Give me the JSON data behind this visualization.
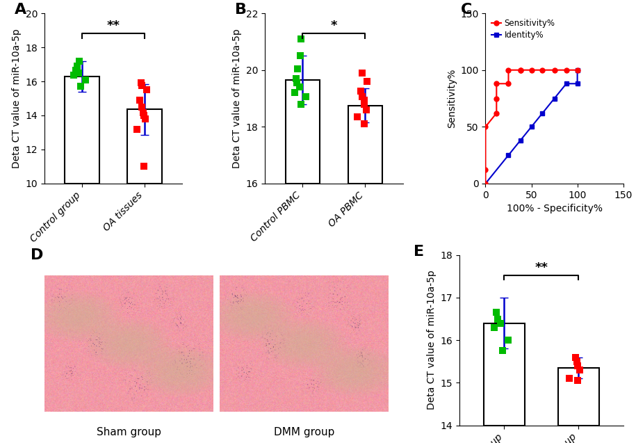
{
  "panel_A": {
    "title": "A",
    "ylabel": "Deta CT value of miR-10a-5p",
    "categories": [
      "Control group",
      "OA tissues"
    ],
    "bar_means": [
      16.3,
      14.35
    ],
    "bar_sd": [
      0.9,
      1.5
    ],
    "ylim": [
      10,
      20
    ],
    "yticks": [
      10,
      12,
      14,
      16,
      18,
      20
    ],
    "sig_text": "**",
    "dots_group1": [
      15.7,
      16.1,
      16.35,
      16.5,
      16.6,
      16.65,
      16.9,
      17.2
    ],
    "dots_group2": [
      11.0,
      13.2,
      13.8,
      14.0,
      14.15,
      14.5,
      14.9,
      15.5,
      15.75,
      15.9
    ],
    "dots_color1": "#00bb00",
    "dots_color2": "#ff0000"
  },
  "panel_B": {
    "title": "B",
    "ylabel": "Deta CT value of miR-10a-5p",
    "categories": [
      "Control PBMC",
      "OA PBMC"
    ],
    "bar_means": [
      19.65,
      18.75
    ],
    "bar_sd": [
      0.85,
      0.6
    ],
    "ylim": [
      16,
      22
    ],
    "yticks": [
      16,
      18,
      20,
      22
    ],
    "sig_text": "*",
    "dots_group1": [
      18.8,
      19.05,
      19.2,
      19.4,
      19.55,
      19.7,
      20.05,
      20.5,
      21.1
    ],
    "dots_group2": [
      18.1,
      18.35,
      18.6,
      18.8,
      18.95,
      19.05,
      19.25,
      19.6,
      19.9
    ],
    "dots_color1": "#00bb00",
    "dots_color2": "#ff0000"
  },
  "panel_C": {
    "title": "C",
    "xlabel": "100% - Specificity%",
    "ylabel": "Sensitivity%",
    "xlim": [
      0,
      150
    ],
    "ylim": [
      0,
      150
    ],
    "xticks": [
      0,
      50,
      100,
      150
    ],
    "yticks": [
      0,
      50,
      100,
      150
    ],
    "roc_x": [
      0,
      0,
      0,
      12,
      12,
      12,
      25,
      25,
      38,
      38,
      50,
      62,
      75,
      88,
      100
    ],
    "roc_y": [
      0,
      12,
      50,
      62,
      75,
      88,
      88,
      100,
      100,
      100,
      100,
      100,
      100,
      100,
      100
    ],
    "identity_x": [
      0,
      25,
      38,
      50,
      62,
      75,
      88,
      100,
      100
    ],
    "identity_y": [
      0,
      25,
      38,
      50,
      62,
      75,
      88,
      88,
      100
    ],
    "roc_color": "#ff0000",
    "identity_color": "#0000cd",
    "legend_sensitivity": "Sensitivity%",
    "legend_identity": "Identity%"
  },
  "panel_D": {
    "title": "D",
    "sham_label": "Sham group",
    "dmm_label": "DMM group"
  },
  "panel_E": {
    "title": "E",
    "ylabel": "Deta CT value of miR-10a-5p",
    "categories": [
      "Sham group",
      "DMM group"
    ],
    "bar_means": [
      16.4,
      15.35
    ],
    "bar_sd": [
      0.6,
      0.25
    ],
    "ylim": [
      14,
      18
    ],
    "yticks": [
      14,
      15,
      16,
      17,
      18
    ],
    "sig_text": "**",
    "dots_group1": [
      15.75,
      16.0,
      16.3,
      16.4,
      16.5,
      16.65
    ],
    "dots_group2": [
      15.05,
      15.1,
      15.3,
      15.4,
      15.5,
      15.6
    ],
    "dots_color1": "#00bb00",
    "dots_color2": "#ff0000"
  },
  "bg_color": "#ffffff",
  "panel_label_fontsize": 16,
  "tick_fontsize": 10,
  "axis_label_fontsize": 10,
  "dot_size": 45,
  "bar_width": 0.55,
  "errorbar_color": "#0000cd",
  "errorbar_capsize": 4,
  "errorbar_lw": 1.8
}
